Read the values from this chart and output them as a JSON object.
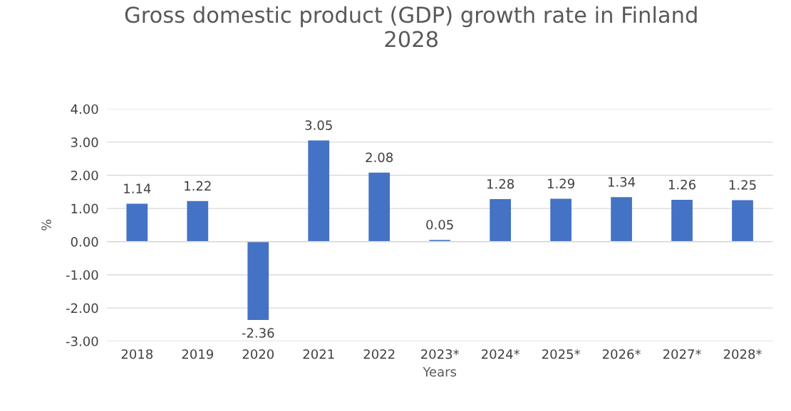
{
  "chart_data": {
    "type": "bar",
    "title": "Gross domestic product (GDP) growth rate in Finland\n2028",
    "xlabel": "Years",
    "ylabel": "%",
    "categories": [
      "2018",
      "2019",
      "2020",
      "2021",
      "2022",
      "2023*",
      "2024*",
      "2025*",
      "2026*",
      "2027*",
      "2028*"
    ],
    "values": [
      1.14,
      1.22,
      -2.36,
      3.05,
      2.08,
      0.05,
      1.28,
      1.29,
      1.34,
      1.26,
      1.25
    ],
    "color": "#4472c4",
    "ylim": [
      -3,
      4
    ],
    "yticks": [
      {
        "value": -3,
        "label": "-3.00"
      },
      {
        "value": -2,
        "label": "-2.00"
      },
      {
        "value": -1,
        "label": "-1.00"
      },
      {
        "value": 0,
        "label": "0.00"
      },
      {
        "value": 1,
        "label": "1.00"
      },
      {
        "value": 2,
        "label": "2.00"
      },
      {
        "value": 3,
        "label": "3.00"
      },
      {
        "value": 4,
        "label": "4.00"
      }
    ],
    "grid": "y",
    "data_labels": true,
    "legend": false
  }
}
